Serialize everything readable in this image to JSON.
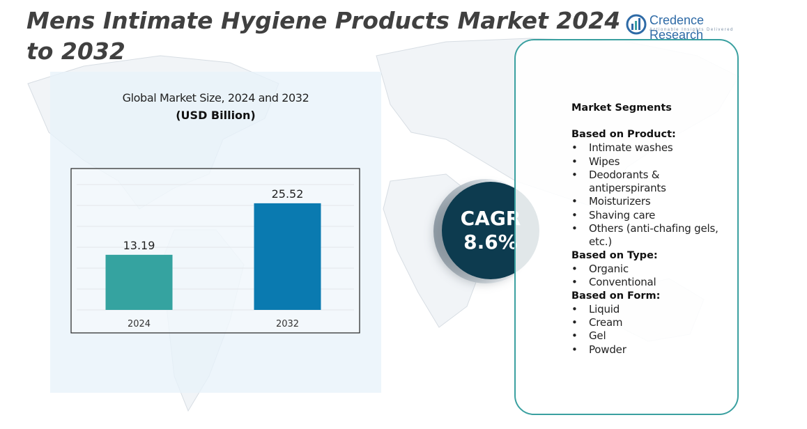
{
  "title": "Mens Intimate Hygiene Products Market 2024 to 2032",
  "logo": {
    "name": "Credence Research",
    "tagline": "Actionable Insights Delivered"
  },
  "chart_panel": {
    "title": "Global Market Size,  2024 and 2032",
    "unit": "(USD Billion)"
  },
  "chart_data": {
    "type": "bar",
    "categories": [
      "2024",
      "2032"
    ],
    "values": [
      13.19,
      25.52
    ],
    "value_labels": [
      "13.19",
      "25.52"
    ],
    "colors": [
      "#35a3a0",
      "#0a7ab0"
    ],
    "ylim": [
      0,
      30
    ],
    "grid": true,
    "title": "Global Market Size,  2024 and 2032",
    "ylabel": "(USD Billion)"
  },
  "cagr": {
    "label": "CAGR",
    "value": "8.6%"
  },
  "segments": {
    "heading": "Market Segments",
    "groups": [
      {
        "title": "Based on Product:",
        "items": [
          "Intimate washes",
          "Wipes",
          "Deodorants & antiperspirants",
          "Moisturizers",
          "Shaving care",
          "Others (anti-chafing gels, etc.)"
        ]
      },
      {
        "title": "Based on Type:",
        "items": [
          "Organic",
          "Conventional"
        ]
      },
      {
        "title": "Based on Form:",
        "items": [
          "Liquid",
          "Cream",
          "Gel",
          "Powder"
        ]
      }
    ]
  },
  "colors": {
    "title": "#404040",
    "panel": "#e8f2fa",
    "cagr_circle": "#0d3b4f",
    "segments_border": "#3aa0a0",
    "brand": "#2e6aa6"
  }
}
